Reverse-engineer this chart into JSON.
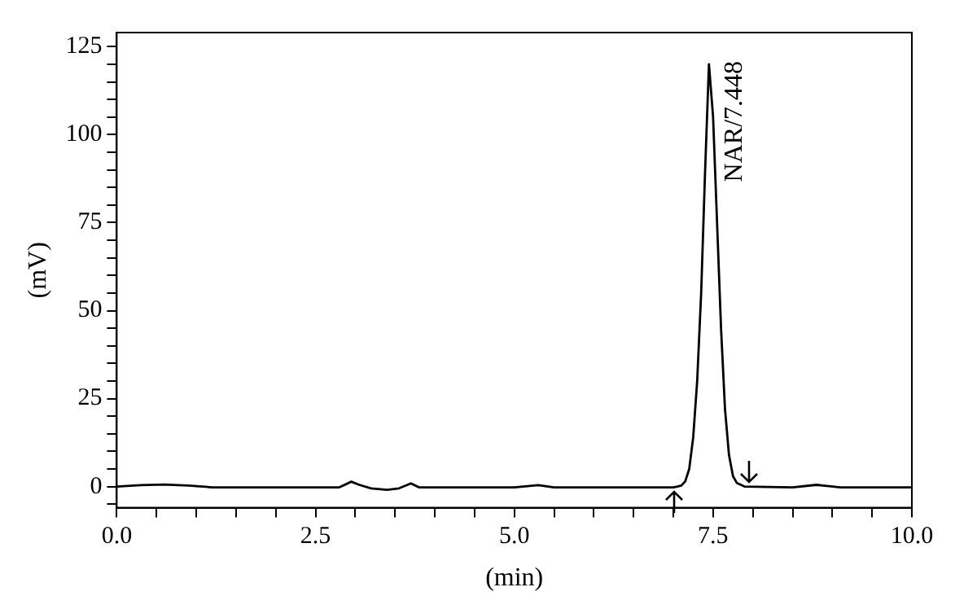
{
  "chart_data": {
    "type": "line",
    "xlabel": "(min)",
    "ylabel": "(mV)",
    "x": [
      0,
      0.3,
      0.6,
      0.9,
      1.2,
      2,
      2.8,
      2.95,
      3.05,
      3.2,
      3.4,
      3.55,
      3.7,
      3.8,
      4,
      5,
      5.3,
      5.5,
      6.5,
      7,
      7.05,
      7.1,
      7.15,
      7.2,
      7.25,
      7.3,
      7.35,
      7.4,
      7.448,
      7.5,
      7.55,
      7.6,
      7.65,
      7.7,
      7.75,
      7.8,
      7.9,
      8.5,
      8.8,
      9.1,
      10
    ],
    "series": [
      {
        "color": "#000000",
        "values": [
          0,
          0.4,
          0.6,
          0.3,
          -0.2,
          -0.2,
          -0.2,
          1.4,
          0.5,
          -0.5,
          -0.9,
          -0.5,
          0.9,
          -0.2,
          -0.2,
          -0.2,
          0.4,
          -0.2,
          -0.2,
          -0.2,
          0,
          0.3,
          1.5,
          5,
          14,
          30,
          55,
          90,
          120,
          105,
          75,
          45,
          22,
          9,
          3,
          1,
          0,
          -0.2,
          0.5,
          -0.2,
          -0.2
        ]
      }
    ],
    "xlim": [
      0,
      10
    ],
    "ylim": [
      -6,
      129
    ],
    "xticks": [
      {
        "value": 0,
        "label": "0.0"
      },
      {
        "value": 0.5,
        "label": null
      },
      {
        "value": 1,
        "label": null
      },
      {
        "value": 1.5,
        "label": null
      },
      {
        "value": 2,
        "label": null
      },
      {
        "value": 2.5,
        "label": "2.5"
      },
      {
        "value": 3,
        "label": null
      },
      {
        "value": 3.5,
        "label": null
      },
      {
        "value": 4,
        "label": null
      },
      {
        "value": 4.5,
        "label": null
      },
      {
        "value": 5,
        "label": "5.0"
      },
      {
        "value": 5.5,
        "label": null
      },
      {
        "value": 6,
        "label": null
      },
      {
        "value": 6.5,
        "label": null
      },
      {
        "value": 7,
        "label": null
      },
      {
        "value": 7.5,
        "label": "7.5"
      },
      {
        "value": 8,
        "label": null
      },
      {
        "value": 8.5,
        "label": null
      },
      {
        "value": 9,
        "label": null
      },
      {
        "value": 9.5,
        "label": null
      },
      {
        "value": 10,
        "label": "10.0"
      }
    ],
    "yticks": [
      {
        "value": -5,
        "label": null
      },
      0,
      {
        "value": 5,
        "label": null
      },
      {
        "value": 10,
        "label": null
      },
      {
        "value": 15,
        "label": null
      },
      {
        "value": 20,
        "label": null
      },
      25,
      {
        "value": 30,
        "label": null
      },
      {
        "value": 35,
        "label": null
      },
      {
        "value": 40,
        "label": null
      },
      {
        "value": 45,
        "label": null
      },
      50,
      {
        "value": 55,
        "label": null
      },
      {
        "value": 60,
        "label": null
      },
      {
        "value": 65,
        "label": null
      },
      {
        "value": 70,
        "label": null
      },
      75,
      {
        "value": 80,
        "label": null
      },
      {
        "value": 85,
        "label": null
      },
      {
        "value": 90,
        "label": null
      },
      {
        "value": 95,
        "label": null
      },
      100,
      {
        "value": 105,
        "label": null
      },
      {
        "value": 110,
        "label": null
      },
      {
        "value": 115,
        "label": null
      },
      {
        "value": 120,
        "label": null
      },
      125
    ],
    "annotations": [
      {
        "text": "NAR/7.448",
        "x": 7.448,
        "y": 120
      }
    ],
    "grid": false,
    "legend": false,
    "marker": "none",
    "line_style": "solid"
  }
}
